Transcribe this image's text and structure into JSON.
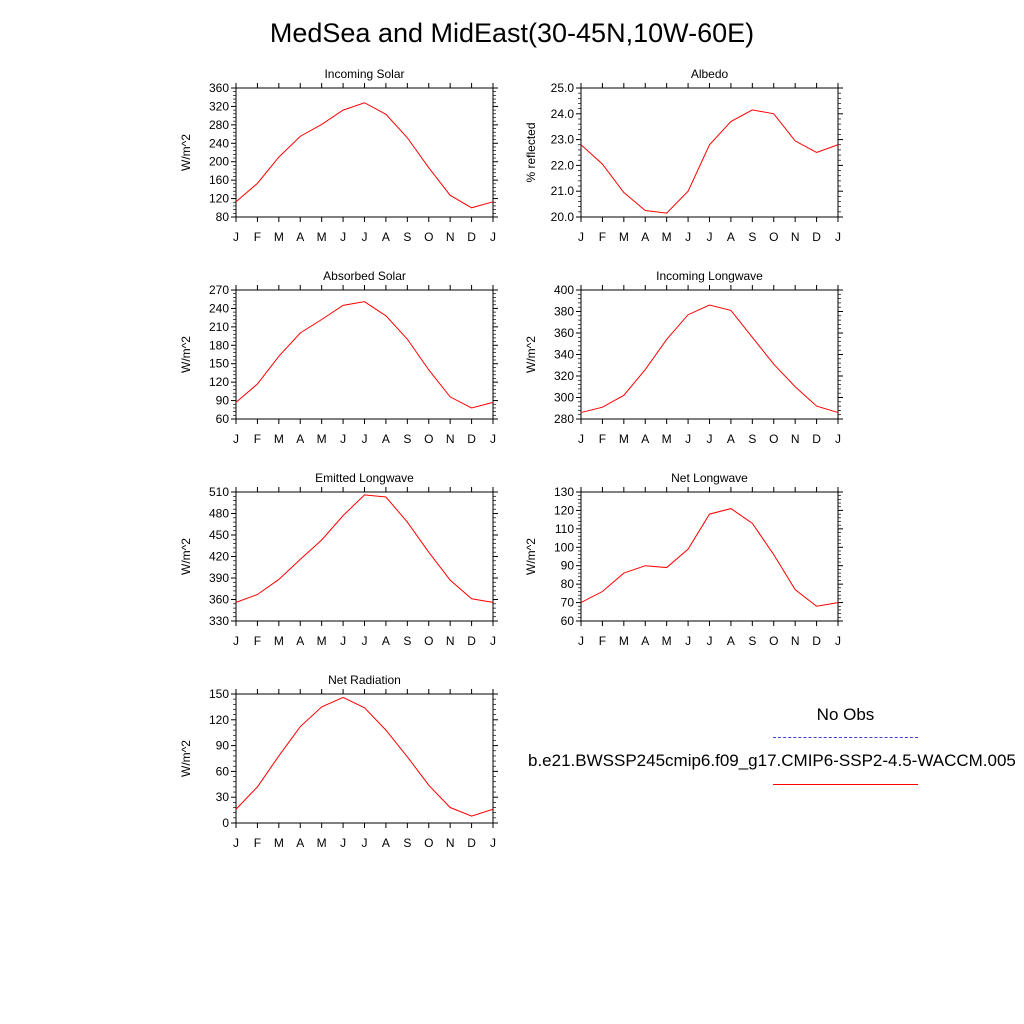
{
  "title": "MedSea and MidEast(30-45N,10W-60E)",
  "months": [
    "J",
    "F",
    "M",
    "A",
    "M",
    "J",
    "J",
    "A",
    "S",
    "O",
    "N",
    "D",
    "J"
  ],
  "legend": {
    "obs_label": "No Obs",
    "obs_color": "#4040d0",
    "model_label": "b.e21.BWSSP245cmip6.f09_g17.CMIP6-SSP2-4.5-WACCM.005",
    "model_color": "#ff0000"
  },
  "chart_data": [
    {
      "type": "line",
      "title": "Incoming Solar",
      "ylabel": "W/m^2",
      "ylim": [
        80,
        360
      ],
      "yticks": [
        80,
        120,
        160,
        200,
        240,
        280,
        320,
        360
      ],
      "ytick_labels": [
        "80",
        "120",
        "160",
        "200",
        "240",
        "280",
        "320",
        "360"
      ],
      "values": [
        113,
        153,
        210,
        255,
        281,
        312,
        328,
        303,
        252,
        187,
        127,
        100,
        113
      ]
    },
    {
      "type": "line",
      "title": "Albedo",
      "ylabel": "% reflected",
      "ylim": [
        20,
        25
      ],
      "yticks": [
        20,
        21,
        22,
        23,
        24,
        25
      ],
      "ytick_labels": [
        "20.0",
        "21.0",
        "22.0",
        "23.0",
        "24.0",
        "25.0"
      ],
      "values": [
        22.8,
        22.05,
        20.95,
        20.25,
        20.15,
        21.0,
        22.8,
        23.7,
        24.15,
        24.0,
        22.95,
        22.5,
        22.8
      ]
    },
    {
      "type": "line",
      "title": "Absorbed Solar",
      "ylabel": "W/m^2",
      "ylim": [
        60,
        270
      ],
      "yticks": [
        60,
        90,
        120,
        150,
        180,
        210,
        240,
        270
      ],
      "ytick_labels": [
        "60",
        "90",
        "120",
        "150",
        "180",
        "210",
        "240",
        "270"
      ],
      "values": [
        87,
        117,
        162,
        200,
        222,
        245,
        251,
        228,
        190,
        140,
        96,
        78,
        87
      ]
    },
    {
      "type": "line",
      "title": "Incoming Longwave",
      "ylabel": "W/m^2",
      "ylim": [
        280,
        400
      ],
      "yticks": [
        280,
        300,
        320,
        340,
        360,
        380,
        400
      ],
      "ytick_labels": [
        "280",
        "300",
        "320",
        "340",
        "360",
        "380",
        "400"
      ],
      "values": [
        286,
        291,
        302,
        326,
        354,
        377,
        386,
        381,
        356,
        331,
        310,
        292,
        286
      ]
    },
    {
      "type": "line",
      "title": "Emitted Longwave",
      "ylabel": "W/m^2",
      "ylim": [
        330,
        510
      ],
      "yticks": [
        330,
        360,
        390,
        420,
        450,
        480,
        510
      ],
      "ytick_labels": [
        "330",
        "360",
        "390",
        "420",
        "450",
        "480",
        "510"
      ],
      "values": [
        356,
        367,
        388,
        416,
        443,
        477,
        506,
        503,
        468,
        426,
        387,
        361,
        356
      ]
    },
    {
      "type": "line",
      "title": "Net Longwave",
      "ylabel": "W/m^2",
      "ylim": [
        60,
        130
      ],
      "yticks": [
        60,
        70,
        80,
        90,
        100,
        110,
        120,
        130
      ],
      "ytick_labels": [
        "60",
        "70",
        "80",
        "90",
        "100",
        "110",
        "120",
        "130"
      ],
      "values": [
        70,
        76,
        86,
        90,
        89,
        99,
        118,
        121,
        113,
        96,
        77,
        68,
        70
      ]
    },
    {
      "type": "line",
      "title": "Net Radiation",
      "ylabel": "W/m^2",
      "ylim": [
        0,
        150
      ],
      "yticks": [
        0,
        30,
        60,
        90,
        120,
        150
      ],
      "ytick_labels": [
        "0",
        "30",
        "60",
        "90",
        "120",
        "150"
      ],
      "values": [
        16,
        42,
        78,
        112,
        135,
        146,
        134,
        108,
        77,
        44,
        18,
        8,
        16
      ]
    }
  ]
}
